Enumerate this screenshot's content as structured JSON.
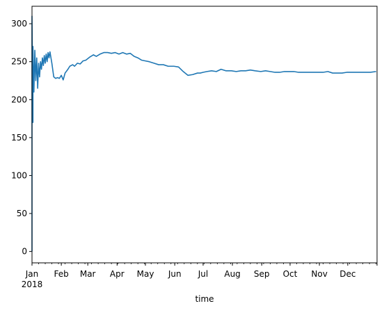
{
  "chart_data": {
    "type": "line",
    "title": "",
    "xlabel": "time",
    "ylabel": "",
    "xlim": [
      "2018-01-01",
      "2018-12-31"
    ],
    "ylim": [
      -15,
      323
    ],
    "yticks": [
      0,
      50,
      100,
      150,
      200,
      250,
      300
    ],
    "xticks": [
      {
        "date": "2018-01-01",
        "label": "Jan",
        "sublabel": "2018"
      },
      {
        "date": "2018-02-01",
        "label": "Feb"
      },
      {
        "date": "2018-03-01",
        "label": "Mar"
      },
      {
        "date": "2018-04-01",
        "label": "Apr"
      },
      {
        "date": "2018-05-01",
        "label": "May"
      },
      {
        "date": "2018-06-01",
        "label": "Jun"
      },
      {
        "date": "2018-07-01",
        "label": "Jul"
      },
      {
        "date": "2018-08-01",
        "label": "Aug"
      },
      {
        "date": "2018-09-01",
        "label": "Sep"
      },
      {
        "date": "2018-10-01",
        "label": "Oct"
      },
      {
        "date": "2018-11-01",
        "label": "Nov"
      },
      {
        "date": "2018-12-01",
        "label": "Dec"
      }
    ],
    "grid": false,
    "legend": "none",
    "series": [
      {
        "color": "#1f77b4",
        "x": [
          "2018-01-01",
          "2018-01-01",
          "2018-01-02",
          "2018-01-02",
          "2018-01-03",
          "2018-01-04",
          "2018-01-05",
          "2018-01-06",
          "2018-01-07",
          "2018-01-08",
          "2018-01-09",
          "2018-01-10",
          "2018-01-11",
          "2018-01-12",
          "2018-01-13",
          "2018-01-14",
          "2018-01-15",
          "2018-01-16",
          "2018-01-17",
          "2018-01-18",
          "2018-01-19",
          "2018-01-20",
          "2018-01-22",
          "2018-01-24",
          "2018-01-26",
          "2018-01-28",
          "2018-01-30",
          "2018-02-01",
          "2018-02-03",
          "2018-02-05",
          "2018-02-08",
          "2018-02-10",
          "2018-02-13",
          "2018-02-15",
          "2018-02-18",
          "2018-02-21",
          "2018-02-24",
          "2018-02-27",
          "2018-03-03",
          "2018-03-07",
          "2018-03-10",
          "2018-03-14",
          "2018-03-18",
          "2018-03-22",
          "2018-03-26",
          "2018-03-30",
          "2018-04-03",
          "2018-04-07",
          "2018-04-11",
          "2018-04-15",
          "2018-04-19",
          "2018-04-23",
          "2018-04-27",
          "2018-05-01",
          "2018-05-05",
          "2018-05-10",
          "2018-05-15",
          "2018-05-20",
          "2018-05-25",
          "2018-05-31",
          "2018-06-05",
          "2018-06-10",
          "2018-06-15",
          "2018-06-20",
          "2018-06-25",
          "2018-06-28",
          "2018-07-01",
          "2018-07-05",
          "2018-07-10",
          "2018-07-15",
          "2018-07-20",
          "2018-07-25",
          "2018-07-31",
          "2018-08-05",
          "2018-08-10",
          "2018-08-15",
          "2018-08-20",
          "2018-08-25",
          "2018-08-31",
          "2018-09-05",
          "2018-09-10",
          "2018-09-15",
          "2018-09-20",
          "2018-09-25",
          "2018-09-30",
          "2018-10-05",
          "2018-10-10",
          "2018-10-15",
          "2018-10-20",
          "2018-10-25",
          "2018-10-31",
          "2018-11-05",
          "2018-11-10",
          "2018-11-15",
          "2018-11-20",
          "2018-11-25",
          "2018-11-30",
          "2018-12-05",
          "2018-12-10",
          "2018-12-15",
          "2018-12-20",
          "2018-12-25",
          "2018-12-31"
        ],
        "y": [
          0,
          310,
          170,
          270,
          210,
          265,
          225,
          255,
          215,
          248,
          230,
          250,
          240,
          255,
          245,
          258,
          248,
          260,
          250,
          262,
          255,
          263,
          248,
          230,
          228,
          229,
          228,
          232,
          226,
          235,
          240,
          244,
          246,
          244,
          248,
          247,
          251,
          252,
          256,
          259,
          257,
          260,
          262,
          262,
          261,
          262,
          260,
          262,
          260,
          261,
          257,
          255,
          252,
          251,
          250,
          248,
          246,
          246,
          244,
          244,
          243,
          237,
          232,
          233,
          235,
          235,
          236,
          237,
          238,
          237,
          240,
          238,
          238,
          237,
          238,
          238,
          239,
          238,
          237,
          238,
          237,
          236,
          236,
          237,
          237,
          237,
          236,
          236,
          236,
          236,
          236,
          236,
          237,
          235,
          235,
          235,
          236,
          236,
          236,
          236,
          236,
          236,
          237
        ]
      }
    ]
  }
}
